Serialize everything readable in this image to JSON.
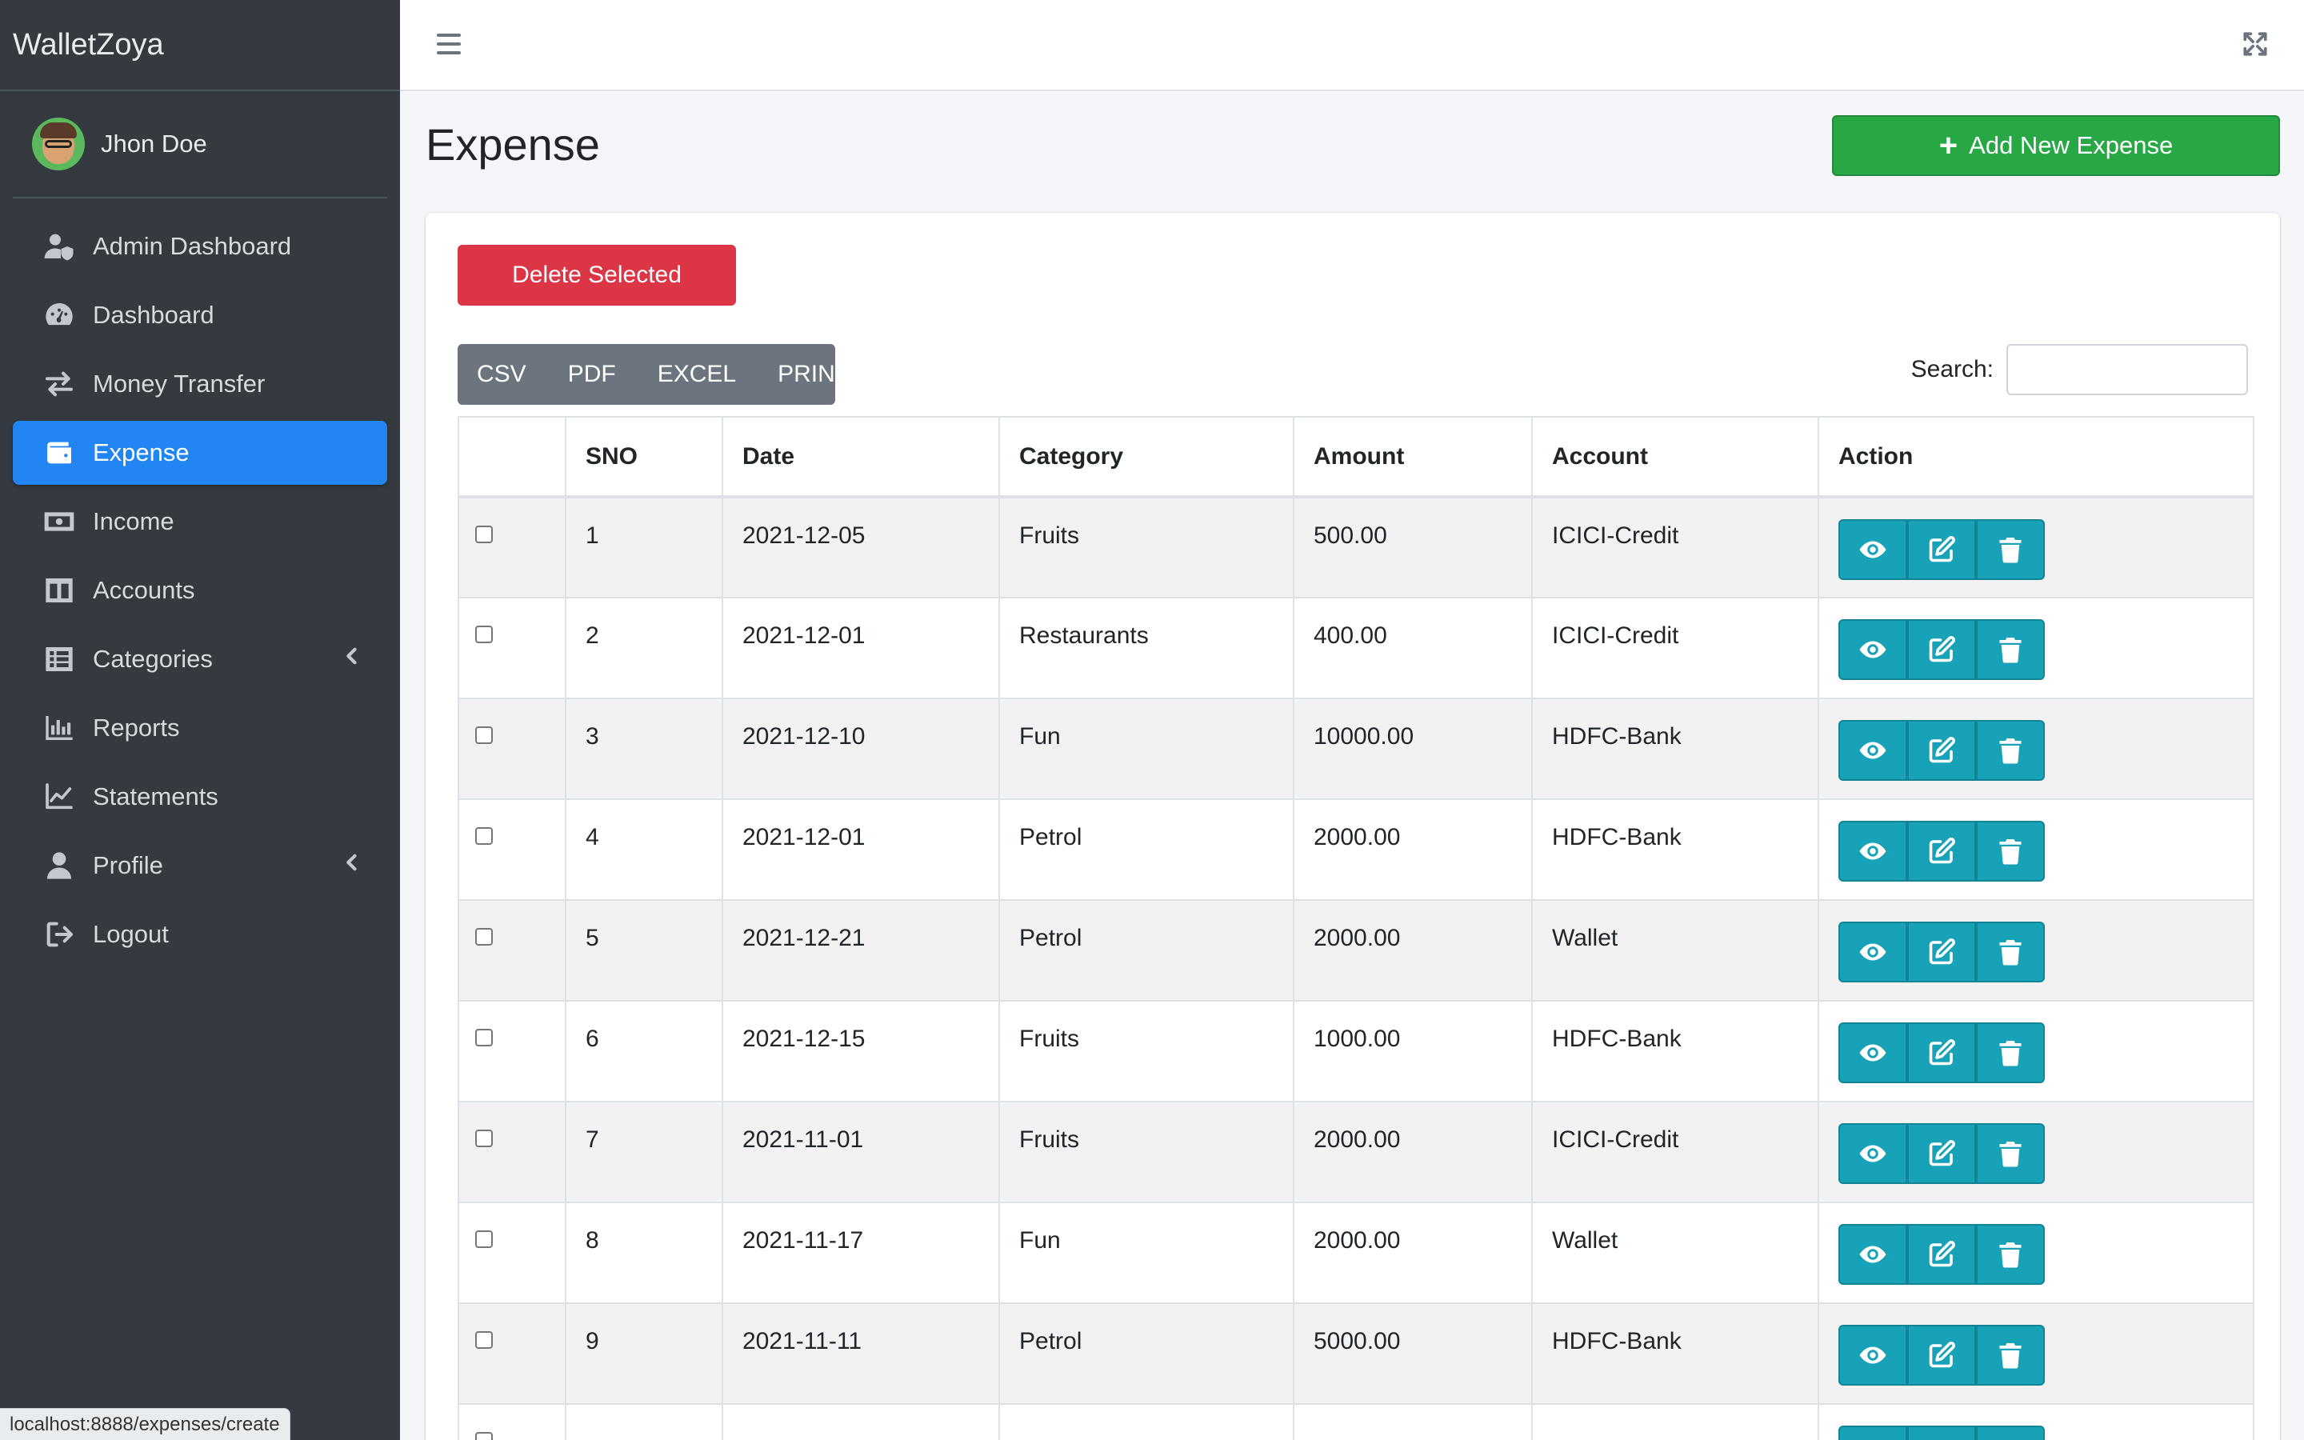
{
  "app": {
    "brand": "WalletZoya"
  },
  "user": {
    "name": "Jhon Doe"
  },
  "sidebar": {
    "items": [
      {
        "label": "Admin Dashboard",
        "icon": "user-shield-icon",
        "active": false,
        "has_caret": false
      },
      {
        "label": "Dashboard",
        "icon": "tachometer-icon",
        "active": false,
        "has_caret": false
      },
      {
        "label": "Money Transfer",
        "icon": "exchange-icon",
        "active": false,
        "has_caret": false
      },
      {
        "label": "Expense",
        "icon": "wallet-icon",
        "active": true,
        "has_caret": false
      },
      {
        "label": "Income",
        "icon": "money-bill-icon",
        "active": false,
        "has_caret": false
      },
      {
        "label": "Accounts",
        "icon": "columns-icon",
        "active": false,
        "has_caret": false
      },
      {
        "label": "Categories",
        "icon": "list-icon",
        "active": false,
        "has_caret": true
      },
      {
        "label": "Reports",
        "icon": "bar-chart-icon",
        "active": false,
        "has_caret": false
      },
      {
        "label": "Statements",
        "icon": "line-chart-icon",
        "active": false,
        "has_caret": false
      },
      {
        "label": "Profile",
        "icon": "user-icon",
        "active": false,
        "has_caret": true
      },
      {
        "label": "Logout",
        "icon": "sign-out-icon",
        "active": false,
        "has_caret": false
      }
    ]
  },
  "statusbar": {
    "url": "localhost:8888/expenses/create"
  },
  "page": {
    "title": "Expense",
    "add_button": "Add New Expense",
    "delete_button": "Delete Selected",
    "export_buttons": [
      "CSV",
      "PDF",
      "EXCEL",
      "PRINT"
    ],
    "search_label": "Search:",
    "search_value": ""
  },
  "table": {
    "columns": [
      "",
      "SNO",
      "Date",
      "Category",
      "Amount",
      "Account",
      "Action"
    ],
    "rows": [
      {
        "sno": "1",
        "date": "2021-12-05",
        "category": "Fruits",
        "amount": "500.00",
        "account": "ICICI-Credit"
      },
      {
        "sno": "2",
        "date": "2021-12-01",
        "category": "Restaurants",
        "amount": "400.00",
        "account": "ICICI-Credit"
      },
      {
        "sno": "3",
        "date": "2021-12-10",
        "category": "Fun",
        "amount": "10000.00",
        "account": "HDFC-Bank"
      },
      {
        "sno": "4",
        "date": "2021-12-01",
        "category": "Petrol",
        "amount": "2000.00",
        "account": "HDFC-Bank"
      },
      {
        "sno": "5",
        "date": "2021-12-21",
        "category": "Petrol",
        "amount": "2000.00",
        "account": "Wallet"
      },
      {
        "sno": "6",
        "date": "2021-12-15",
        "category": "Fruits",
        "amount": "1000.00",
        "account": "HDFC-Bank"
      },
      {
        "sno": "7",
        "date": "2021-11-01",
        "category": "Fruits",
        "amount": "2000.00",
        "account": "ICICI-Credit"
      },
      {
        "sno": "8",
        "date": "2021-11-17",
        "category": "Fun",
        "amount": "2000.00",
        "account": "Wallet"
      },
      {
        "sno": "9",
        "date": "2021-11-11",
        "category": "Petrol",
        "amount": "5000.00",
        "account": "HDFC-Bank"
      },
      {
        "sno": "",
        "date": "",
        "category": "",
        "amount": "",
        "account": ""
      }
    ]
  },
  "colors": {
    "sidebar_bg": "#343a40",
    "active_nav": "#2185f4",
    "add_button": "#28a745",
    "delete_button": "#dc3545",
    "export_group": "#6c757d",
    "action_button": "#17a2b8"
  }
}
